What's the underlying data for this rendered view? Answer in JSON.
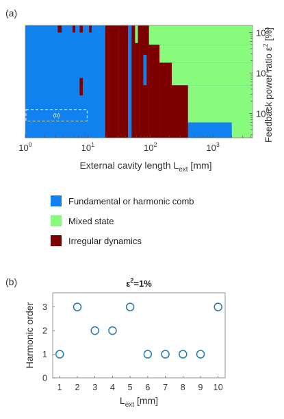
{
  "panel_a_label": "(a)",
  "panel_b_label": "(b)",
  "chart_data": [
    {
      "type": "heatmap",
      "xlabel_main": "External cavity length L",
      "xlabel_sub": "ext",
      "xlabel_unit": " [mm]",
      "ylabel_main": "Feedback power ratio ",
      "ylabel_symbol": "ε",
      "ylabel_sup": "2",
      "ylabel_unit": " [%]",
      "x_scale": "log",
      "y_scale": "log",
      "xlim": [
        1,
        4300
      ],
      "ylim": [
        0.25,
        150
      ],
      "x_ticks": [
        {
          "v": 1,
          "b": "10",
          "e": "0"
        },
        {
          "v": 10,
          "b": "10",
          "e": "1"
        },
        {
          "v": 100,
          "b": "10",
          "e": "2"
        },
        {
          "v": 1000,
          "b": "10",
          "e": "3"
        }
      ],
      "y_ticks": [
        {
          "v": 1,
          "b": "10",
          "e": "0"
        },
        {
          "v": 10,
          "b": "10",
          "e": "1"
        },
        {
          "v": 100,
          "b": "10",
          "e": "2"
        }
      ],
      "y_axis_side": "right",
      "colors": {
        "fundamental": "#1281f0",
        "mixed": "#88fb7d",
        "irregular": "#7d0000"
      },
      "background": "fundamental",
      "regions": [
        {
          "state": "irregular",
          "x": [
            19,
            31
          ],
          "y": [
            0.25,
            150
          ]
        },
        {
          "state": "irregular",
          "x": [
            31,
            44
          ],
          "y": [
            0.25,
            150
          ]
        },
        {
          "state": "irregular",
          "x": [
            50,
            57
          ],
          "y": [
            0.25,
            150
          ]
        },
        {
          "state": "irregular",
          "x": [
            57,
            95
          ],
          "y": [
            0.25,
            150
          ]
        },
        {
          "state": "irregular",
          "x": [
            95,
            140
          ],
          "y": [
            0.25,
            50
          ]
        },
        {
          "state": "irregular",
          "x": [
            140,
            220
          ],
          "y": [
            0.25,
            18
          ]
        },
        {
          "state": "irregular",
          "x": [
            220,
            290
          ],
          "y": [
            0.25,
            5
          ]
        },
        {
          "state": "irregular",
          "x": [
            290,
            400
          ],
          "y": [
            0.6,
            5
          ]
        },
        {
          "state": "irregular",
          "x": [
            290,
            400
          ],
          "y": [
            0.25,
            0.6
          ]
        },
        {
          "state": "irregular",
          "x": [
            3.3,
            3.8
          ],
          "y": [
            100,
            150
          ]
        },
        {
          "state": "irregular",
          "x": [
            5.7,
            6.3
          ],
          "y": [
            100,
            150
          ]
        },
        {
          "state": "irregular",
          "x": [
            7.4,
            8.3
          ],
          "y": [
            100,
            150
          ]
        },
        {
          "state": "irregular",
          "x": [
            7.4,
            8.3
          ],
          "y": [
            2.8,
            7.5
          ]
        },
        {
          "state": "irregular",
          "x": [
            10.5,
            11.5
          ],
          "y": [
            100,
            150
          ]
        },
        {
          "state": "mixed",
          "x": [
            57,
            63
          ],
          "y": [
            55,
            150
          ]
        },
        {
          "state": "mixed",
          "x": [
            95,
            4300
          ],
          "y": [
            50,
            150
          ]
        },
        {
          "state": "mixed",
          "x": [
            140,
            4300
          ],
          "y": [
            18,
            50
          ]
        },
        {
          "state": "mixed",
          "x": [
            220,
            4300
          ],
          "y": [
            5,
            18
          ]
        },
        {
          "state": "mixed",
          "x": [
            400,
            4300
          ],
          "y": [
            0.6,
            5
          ]
        },
        {
          "state": "mixed",
          "x": [
            2000,
            4300
          ],
          "y": [
            0.25,
            0.6
          ]
        },
        {
          "state": "fundamental",
          "x": [
            44,
            50
          ],
          "y": [
            0.25,
            150
          ]
        },
        {
          "state": "fundamental",
          "x": [
            77,
            87
          ],
          "y": [
            5,
            28
          ]
        },
        {
          "state": "fundamental",
          "x": [
            400,
            2000
          ],
          "y": [
            0.25,
            0.6
          ]
        },
        {
          "state": "fundamental",
          "x": [
            57,
            63
          ],
          "y": [
            150,
            150
          ]
        }
      ],
      "inset_box": {
        "label": "(b)",
        "x": [
          1,
          10
        ],
        "y": [
          0.65,
          1.25
        ]
      }
    },
    {
      "type": "legend",
      "entries": [
        {
          "label": "Fundamental or harmonic comb",
          "state": "fundamental"
        },
        {
          "label": "Mixed state",
          "state": "mixed"
        },
        {
          "label": "Irregular dynamics",
          "state": "irregular"
        }
      ]
    },
    {
      "type": "scatter",
      "title_symbol": "ε",
      "title_sup": "2",
      "title_rest": "=1%",
      "ylabel": "Harmonic order",
      "xlabel_main": "L",
      "xlabel_sub": "ext",
      "xlabel_unit": " [mm]",
      "xlim": [
        0.6,
        10.4
      ],
      "ylim": [
        0,
        3.6
      ],
      "x_ticks": [
        1,
        2,
        3,
        4,
        5,
        6,
        7,
        8,
        9,
        10
      ],
      "y_ticks": [
        0,
        1,
        2,
        3
      ],
      "marker": "circle-open",
      "color": "#1f77b4",
      "x": [
        1,
        2,
        3,
        4,
        5,
        6,
        7,
        8,
        9,
        10
      ],
      "y": [
        1,
        3,
        2,
        2,
        3,
        1,
        1,
        1,
        1,
        3
      ]
    }
  ]
}
